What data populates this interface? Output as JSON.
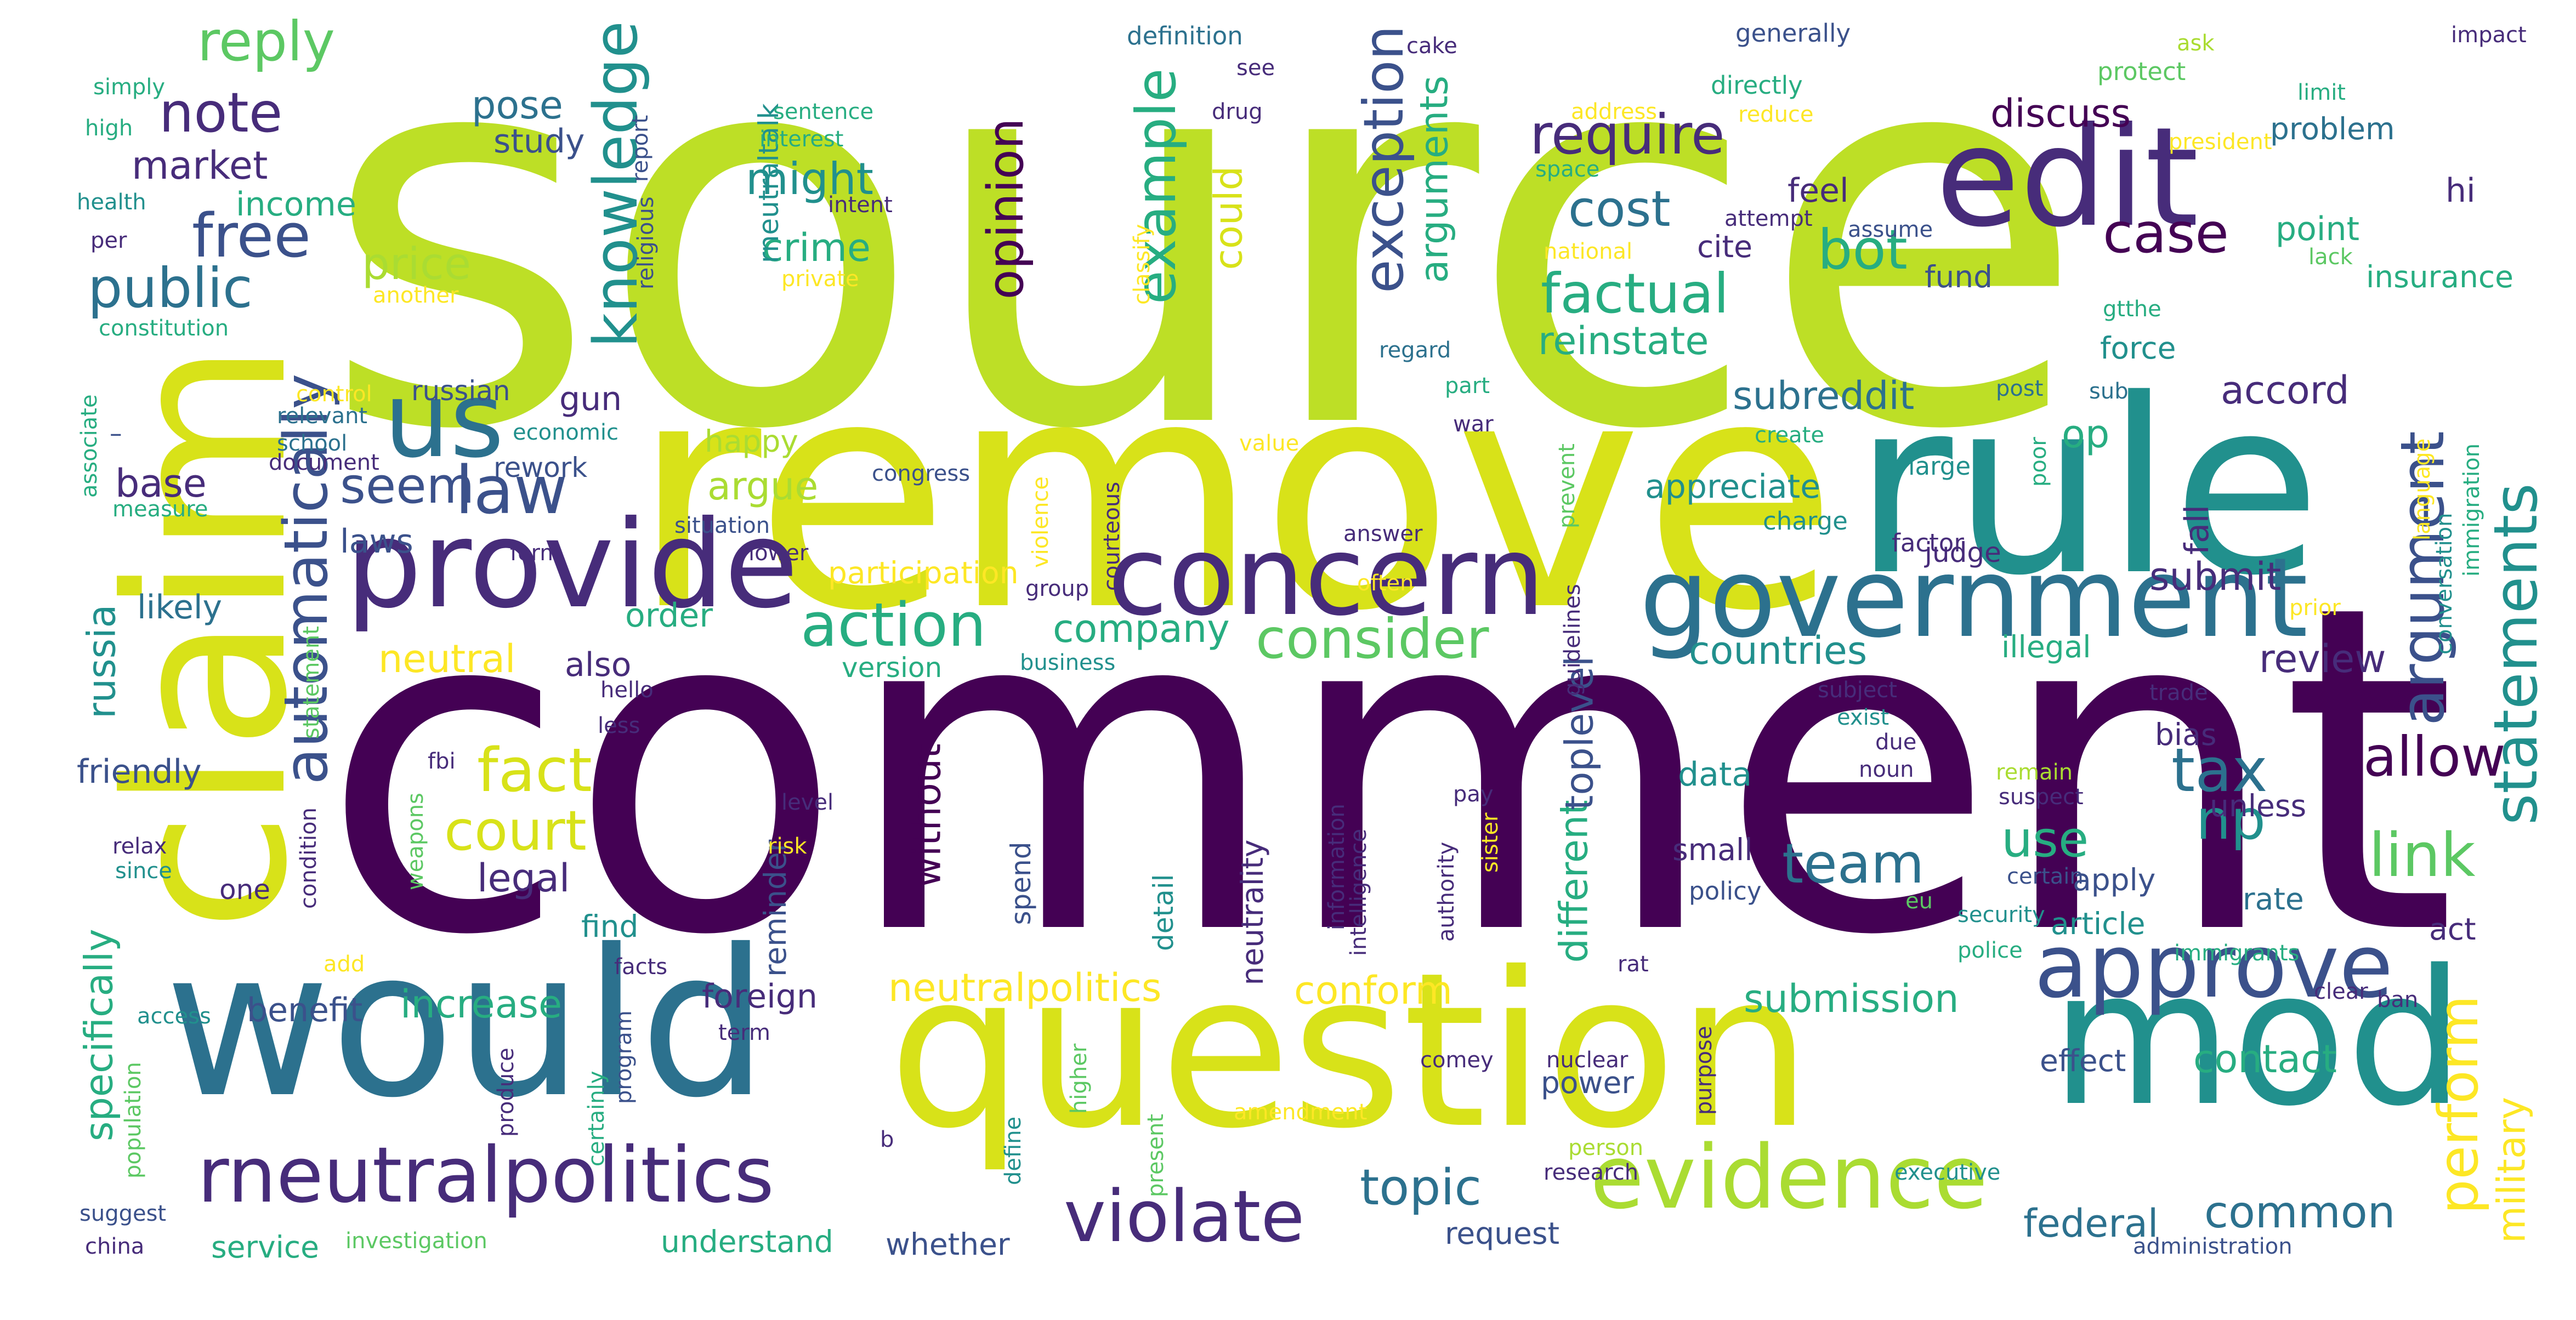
{
  "palette": {
    "dark_purple": "#440154",
    "indigo": "#472c7a",
    "slate_blue": "#3b518b",
    "steel_blue": "#2c718e",
    "teal": "#21908d",
    "sea_green": "#27ad81",
    "green": "#5cc863",
    "light_green": "#aadc32",
    "lime": "#bddf26",
    "yellow_green": "#d8e219",
    "yellow": "#fde725"
  },
  "words": [
    {
      "text": "source",
      "color": "lime"
    },
    {
      "text": "comment",
      "color": "dark_purple"
    },
    {
      "text": "remove",
      "color": "yellow_green"
    },
    {
      "text": "rule",
      "color": "teal"
    },
    {
      "text": "claim",
      "color": "yellow_green"
    },
    {
      "text": "would",
      "color": "steel_blue"
    },
    {
      "text": "question",
      "color": "yellow_green"
    },
    {
      "text": "mod",
      "color": "teal"
    },
    {
      "text": "edit",
      "color": "indigo"
    },
    {
      "text": "provide",
      "color": "indigo"
    },
    {
      "text": "concern",
      "color": "indigo"
    },
    {
      "text": "government",
      "color": "steel_blue"
    },
    {
      "text": "approve",
      "color": "slate_blue"
    },
    {
      "text": "evidence",
      "color": "light_green"
    },
    {
      "text": "rneutralpolitics",
      "color": "indigo"
    },
    {
      "text": "violate",
      "color": "indigo"
    },
    {
      "text": "us",
      "color": "steel_blue"
    },
    {
      "text": "law",
      "color": "slate_blue"
    },
    {
      "text": "note",
      "color": "indigo"
    },
    {
      "text": "free",
      "color": "slate_blue"
    },
    {
      "text": "public",
      "color": "steel_blue"
    },
    {
      "text": "reply",
      "color": "green"
    },
    {
      "text": "market",
      "color": "indigo"
    },
    {
      "text": "knowledge",
      "color": "teal"
    },
    {
      "text": "automatically",
      "color": "slate_blue"
    },
    {
      "text": "seem",
      "color": "slate_blue"
    },
    {
      "text": "price",
      "color": "light_green"
    },
    {
      "text": "pose",
      "color": "steel_blue"
    },
    {
      "text": "study",
      "color": "slate_blue"
    },
    {
      "text": "income",
      "color": "sea_green"
    },
    {
      "text": "fact",
      "color": "yellow_green"
    },
    {
      "text": "court",
      "color": "yellow_green"
    },
    {
      "text": "legal",
      "color": "indigo"
    },
    {
      "text": "gun",
      "color": "indigo"
    },
    {
      "text": "base",
      "color": "indigo"
    },
    {
      "text": "argue",
      "color": "light_green"
    },
    {
      "text": "action",
      "color": "sea_green"
    },
    {
      "text": "might",
      "color": "teal"
    },
    {
      "text": "crime",
      "color": "sea_green"
    },
    {
      "text": "example",
      "color": "sea_green"
    },
    {
      "text": "could",
      "color": "yellow_green"
    },
    {
      "text": "opinion",
      "color": "dark_purple"
    },
    {
      "text": "exception",
      "color": "slate_blue"
    },
    {
      "text": "arguments",
      "color": "sea_green"
    },
    {
      "text": "require",
      "color": "indigo"
    },
    {
      "text": "cost",
      "color": "steel_blue"
    },
    {
      "text": "factual",
      "color": "sea_green"
    },
    {
      "text": "bot",
      "color": "sea_green"
    },
    {
      "text": "discuss",
      "color": "dark_purple"
    },
    {
      "text": "case",
      "color": "dark_purple"
    },
    {
      "text": "reinstate",
      "color": "sea_green"
    },
    {
      "text": "argument",
      "color": "slate_blue"
    },
    {
      "text": "statements",
      "color": "teal"
    },
    {
      "text": "consider",
      "color": "green"
    },
    {
      "text": "company",
      "color": "sea_green"
    },
    {
      "text": "also",
      "color": "indigo"
    },
    {
      "text": "tax",
      "color": "steel_blue"
    },
    {
      "text": "np",
      "color": "teal"
    },
    {
      "text": "link",
      "color": "green"
    },
    {
      "text": "allow",
      "color": "dark_purple"
    },
    {
      "text": "team",
      "color": "steel_blue"
    },
    {
      "text": "use",
      "color": "sea_green"
    },
    {
      "text": "topic",
      "color": "steel_blue"
    },
    {
      "text": "common",
      "color": "steel_blue"
    },
    {
      "text": "perform",
      "color": "yellow"
    },
    {
      "text": "military",
      "color": "yellow"
    },
    {
      "text": "countries",
      "color": "teal"
    },
    {
      "text": "review",
      "color": "indigo"
    },
    {
      "text": "submit",
      "color": "indigo"
    },
    {
      "text": "accord",
      "color": "indigo"
    },
    {
      "text": "subreddit",
      "color": "steel_blue"
    },
    {
      "text": "appreciate",
      "color": "teal"
    },
    {
      "text": "op",
      "color": "sea_green"
    },
    {
      "text": "feel",
      "color": "indigo"
    },
    {
      "text": "different",
      "color": "sea_green"
    },
    {
      "text": "toplevel",
      "color": "slate_blue"
    },
    {
      "text": "neutral",
      "color": "yellow"
    },
    {
      "text": "conform",
      "color": "yellow"
    },
    {
      "text": "neutralpolitics",
      "color": "yellow"
    },
    {
      "text": "submission",
      "color": "sea_green"
    },
    {
      "text": "contact",
      "color": "sea_green"
    },
    {
      "text": "federal",
      "color": "steel_blue"
    },
    {
      "text": "increase",
      "color": "sea_green"
    },
    {
      "text": "benefit",
      "color": "slate_blue"
    },
    {
      "text": "without",
      "color": "dark_purple"
    },
    {
      "text": "foreign",
      "color": "indigo"
    },
    {
      "text": "friendly",
      "color": "slate_blue"
    },
    {
      "text": "russia",
      "color": "teal"
    },
    {
      "text": "specifically",
      "color": "sea_green"
    },
    {
      "text": "laws",
      "color": "slate_blue"
    },
    {
      "text": "likely",
      "color": "steel_blue"
    },
    {
      "text": "russian",
      "color": "slate_blue"
    },
    {
      "text": "rework",
      "color": "slate_blue"
    },
    {
      "text": "happy",
      "color": "light_green"
    },
    {
      "text": "participation",
      "color": "yellow"
    },
    {
      "text": "order",
      "color": "sea_green"
    },
    {
      "text": "version",
      "color": "sea_green"
    },
    {
      "text": "illegal",
      "color": "sea_green"
    },
    {
      "text": "data",
      "color": "teal"
    },
    {
      "text": "small",
      "color": "indigo"
    },
    {
      "text": "policy",
      "color": "slate_blue"
    },
    {
      "text": "apply",
      "color": "slate_blue"
    },
    {
      "text": "article",
      "color": "teal"
    },
    {
      "text": "rate",
      "color": "steel_blue"
    },
    {
      "text": "unless",
      "color": "indigo"
    },
    {
      "text": "bias",
      "color": "indigo"
    },
    {
      "text": "act",
      "color": "indigo"
    },
    {
      "text": "fall",
      "color": "indigo"
    },
    {
      "text": "hi",
      "color": "indigo"
    },
    {
      "text": "insurance",
      "color": "sea_green"
    },
    {
      "text": "problem",
      "color": "steel_blue"
    },
    {
      "text": "point",
      "color": "sea_green"
    },
    {
      "text": "fund",
      "color": "slate_blue"
    },
    {
      "text": "force",
      "color": "teal"
    },
    {
      "text": "judge",
      "color": "indigo"
    },
    {
      "text": "large",
      "color": "teal"
    },
    {
      "text": "charge",
      "color": "teal"
    },
    {
      "text": "factor",
      "color": "indigo"
    },
    {
      "text": "one",
      "color": "indigo"
    },
    {
      "text": "find",
      "color": "teal"
    },
    {
      "text": "service",
      "color": "sea_green"
    },
    {
      "text": "whether",
      "color": "slate_blue"
    },
    {
      "text": "understand",
      "color": "sea_green"
    },
    {
      "text": "request",
      "color": "slate_blue"
    },
    {
      "text": "power",
      "color": "slate_blue"
    },
    {
      "text": "effect",
      "color": "slate_blue"
    },
    {
      "text": "neutrality",
      "color": "indigo"
    },
    {
      "text": "reminder",
      "color": "slate_blue"
    },
    {
      "text": "spend",
      "color": "slate_blue"
    },
    {
      "text": "detail",
      "color": "teal"
    },
    {
      "text": "cite",
      "color": "indigo"
    },
    {
      "text": "rneutraltalk",
      "color": "teal"
    },
    {
      "text": "definition",
      "color": "steel_blue"
    },
    {
      "text": "generally",
      "color": "slate_blue"
    },
    {
      "text": "impact",
      "color": "indigo"
    },
    {
      "text": "protect",
      "color": "green"
    },
    {
      "text": "limit",
      "color": "sea_green"
    },
    {
      "text": "ask",
      "color": "light_green"
    },
    {
      "text": "reduce",
      "color": "yellow"
    },
    {
      "text": "address",
      "color": "yellow"
    },
    {
      "text": "directly",
      "color": "sea_green"
    },
    {
      "text": "president",
      "color": "yellow"
    },
    {
      "text": "attempt",
      "color": "indigo"
    },
    {
      "text": "assume",
      "color": "slate_blue"
    },
    {
      "text": "lack",
      "color": "green"
    },
    {
      "text": "national",
      "color": "yellow"
    },
    {
      "text": "gtthe",
      "color": "sea_green"
    },
    {
      "text": "post",
      "color": "steel_blue"
    },
    {
      "text": "sub",
      "color": "steel_blue"
    },
    {
      "text": "poor",
      "color": "sea_green"
    },
    {
      "text": "regard",
      "color": "steel_blue"
    },
    {
      "text": "part",
      "color": "sea_green"
    },
    {
      "text": "create",
      "color": "sea_green"
    },
    {
      "text": "war",
      "color": "indigo"
    },
    {
      "text": "space",
      "color": "sea_green"
    },
    {
      "text": "guidelines",
      "color": "indigo"
    },
    {
      "text": "prevent",
      "color": "green"
    },
    {
      "text": "answer",
      "color": "indigo"
    },
    {
      "text": "cake",
      "color": "indigo"
    },
    {
      "text": "drug",
      "color": "indigo"
    },
    {
      "text": "see",
      "color": "indigo"
    },
    {
      "text": "sentence",
      "color": "sea_green"
    },
    {
      "text": "interest",
      "color": "sea_green"
    },
    {
      "text": "intent",
      "color": "indigo"
    },
    {
      "text": "private",
      "color": "yellow"
    },
    {
      "text": "classify",
      "color": "yellow"
    },
    {
      "text": "simply",
      "color": "sea_green"
    },
    {
      "text": "high",
      "color": "sea_green"
    },
    {
      "text": "health",
      "color": "teal"
    },
    {
      "text": "per",
      "color": "indigo"
    },
    {
      "text": "another",
      "color": "yellow"
    },
    {
      "text": "constitution",
      "color": "sea_green"
    },
    {
      "text": "religious",
      "color": "slate_blue"
    },
    {
      "text": "report",
      "color": "slate_blue"
    },
    {
      "text": "control",
      "color": "yellow"
    },
    {
      "text": "relevant",
      "color": "steel_blue"
    },
    {
      "text": "school",
      "color": "steel_blue"
    },
    {
      "text": "document",
      "color": "indigo"
    },
    {
      "text": "economic",
      "color": "teal"
    },
    {
      "text": "associate",
      "color": "sea_green"
    },
    {
      "text": "measure",
      "color": "sea_green"
    },
    {
      "text": "value",
      "color": "yellow"
    },
    {
      "text": "congress",
      "color": "slate_blue"
    },
    {
      "text": "situation",
      "color": "slate_blue"
    },
    {
      "text": "lower",
      "color": "indigo"
    },
    {
      "text": "form",
      "color": "indigo"
    },
    {
      "text": "violence",
      "color": "yellow"
    },
    {
      "text": "courteous",
      "color": "indigo"
    },
    {
      "text": "group",
      "color": "indigo"
    },
    {
      "text": "business",
      "color": "teal"
    },
    {
      "text": "hello",
      "color": "indigo"
    },
    {
      "text": "less",
      "color": "indigo"
    },
    {
      "text": "statement",
      "color": "green"
    },
    {
      "text": "fbi",
      "color": "indigo"
    },
    {
      "text": "level",
      "color": "indigo"
    },
    {
      "text": "risk",
      "color": "yellow"
    },
    {
      "text": "relax",
      "color": "indigo"
    },
    {
      "text": "since",
      "color": "teal"
    },
    {
      "text": "condition",
      "color": "indigo"
    },
    {
      "text": "weapons",
      "color": "green"
    },
    {
      "text": "add",
      "color": "yellow"
    },
    {
      "text": "access",
      "color": "teal"
    },
    {
      "text": "facts",
      "color": "indigo"
    },
    {
      "text": "term",
      "color": "indigo"
    },
    {
      "text": "produce",
      "color": "indigo"
    },
    {
      "text": "certainly",
      "color": "sea_green"
    },
    {
      "text": "program",
      "color": "slate_blue"
    },
    {
      "text": "population",
      "color": "green"
    },
    {
      "text": "suggest",
      "color": "slate_blue"
    },
    {
      "text": "china",
      "color": "indigo"
    },
    {
      "text": "b",
      "color": "indigo"
    },
    {
      "text": "define",
      "color": "teal"
    },
    {
      "text": "present",
      "color": "green"
    },
    {
      "text": "higher",
      "color": "green"
    },
    {
      "text": "amendment",
      "color": "yellow"
    },
    {
      "text": "investigation",
      "color": "green"
    },
    {
      "text": "comey",
      "color": "indigo"
    },
    {
      "text": "nuclear",
      "color": "indigo"
    },
    {
      "text": "person",
      "color": "light_green"
    },
    {
      "text": "purpose",
      "color": "indigo"
    },
    {
      "text": "research",
      "color": "indigo"
    },
    {
      "text": "executive",
      "color": "teal"
    },
    {
      "text": "administration",
      "color": "slate_blue"
    },
    {
      "text": "clear",
      "color": "indigo"
    },
    {
      "text": "ban",
      "color": "indigo"
    },
    {
      "text": "immigrants",
      "color": "sea_green"
    },
    {
      "text": "police",
      "color": "sea_green"
    },
    {
      "text": "security",
      "color": "teal"
    },
    {
      "text": "certain",
      "color": "slate_blue"
    },
    {
      "text": "eu",
      "color": "green"
    },
    {
      "text": "rat",
      "color": "indigo"
    },
    {
      "text": "information",
      "color": "indigo"
    },
    {
      "text": "intelligence",
      "color": "indigo"
    },
    {
      "text": "authority",
      "color": "indigo"
    },
    {
      "text": "sister",
      "color": "yellow"
    },
    {
      "text": "pay",
      "color": "indigo"
    },
    {
      "text": "remain",
      "color": "light_green"
    },
    {
      "text": "suspect",
      "color": "indigo"
    },
    {
      "text": "noun",
      "color": "indigo"
    },
    {
      "text": "due",
      "color": "indigo"
    },
    {
      "text": "exist",
      "color": "teal"
    },
    {
      "text": "subject",
      "color": "indigo"
    },
    {
      "text": "trade",
      "color": "indigo"
    },
    {
      "text": "prior",
      "color": "yellow"
    },
    {
      "text": "conversation",
      "color": "teal"
    },
    {
      "text": "immigration",
      "color": "sea_green"
    },
    {
      "text": "language",
      "color": "yellow"
    },
    {
      "text": "often",
      "color": "yellow"
    },
    {
      "text": "–",
      "color": "slate_blue"
    }
  ]
}
